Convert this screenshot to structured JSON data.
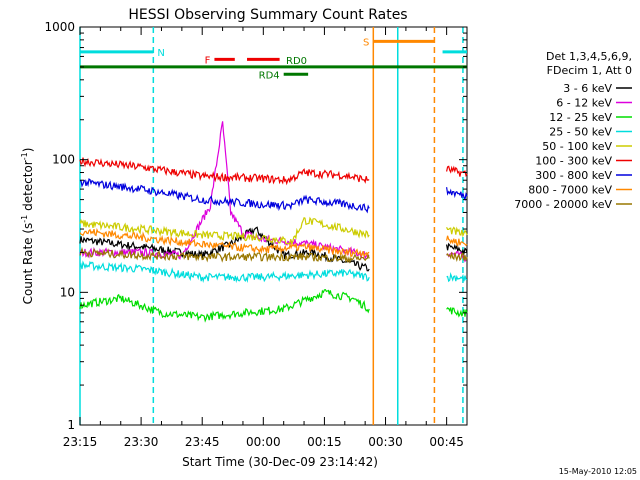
{
  "chart_data": {
    "type": "line",
    "title": "HESSI Observing Summary Count Rates",
    "xlabel": "Start Time (30-Dec-09 23:14:42)",
    "ylabel": "Count Rate (s^-1 detector^-1)",
    "ylabel_main": "Count Rate (s",
    "ylabel_sup1": "-1",
    "ylabel_mid": " detector",
    "ylabel_sup2": "-1",
    "ylabel_end": ")",
    "y_scale": "log",
    "ylim": [
      1,
      1000
    ],
    "xlim": [
      "23:15",
      "00:50"
    ],
    "x_ticks": [
      "23:15",
      "23:30",
      "23:45",
      "00:00",
      "00:15",
      "00:30",
      "00:45"
    ],
    "y_ticks": [
      "1",
      "10",
      "100",
      "1000"
    ],
    "grid": false,
    "legend_position": "right",
    "legend_header": [
      "Det 1,3,4,5,6,9,",
      "FDecim 1, Att 0"
    ],
    "footer_date": "15-May-2010 12:05",
    "series": [
      {
        "name": "3 - 6 keV",
        "color": "#000000",
        "segments": [
          {
            "x": [
              "23:15",
              "23:30",
              "23:45",
              "23:52",
              "23:58",
              "00:05",
              "00:12",
              "00:20",
              "00:26"
            ],
            "y": [
              25,
              22,
              19,
              23,
              30,
              19,
              20,
              17,
              15
            ]
          },
          {
            "x": [
              "00:45",
              "00:48",
              "00:50"
            ],
            "y": [
              22,
              21,
              20
            ]
          }
        ]
      },
      {
        "name": "6 - 12 keV",
        "color": "#dd00dd",
        "segments": [
          {
            "x": [
              "23:15",
              "23:30",
              "23:40",
              "23:47",
              "23:50",
              "23:52",
              "23:55",
              "24:00",
              "00:08",
              "00:15",
              "00:22",
              "00:26"
            ],
            "y": [
              20,
              20,
              19,
              45,
              190,
              40,
              28,
              25,
              24,
              22,
              20,
              19
            ]
          },
          {
            "x": [
              "00:45",
              "00:48",
              "00:50"
            ],
            "y": [
              20,
              19,
              18
            ]
          }
        ]
      },
      {
        "name": "12 - 25 keV",
        "color": "#00dd00",
        "segments": [
          {
            "x": [
              "23:15",
              "23:25",
              "23:35",
              "23:45",
              "23:55",
              "00:05",
              "00:15",
              "00:22",
              "00:26"
            ],
            "y": [
              8,
              9,
              7,
              6.5,
              7,
              7.5,
              10,
              9,
              7.5
            ]
          },
          {
            "x": [
              "00:45",
              "00:48",
              "00:50"
            ],
            "y": [
              7.5,
              7,
              7
            ]
          }
        ]
      },
      {
        "name": "25 - 50 keV",
        "color": "#00dddd",
        "segments": [
          {
            "x": [
              "23:15",
              "23:30",
              "23:45",
              "24:00",
              "00:10",
              "00:20",
              "00:26"
            ],
            "y": [
              16,
              15,
              13,
              13,
              13.5,
              14,
              13
            ]
          },
          {
            "x": [
              "00:45",
              "00:48",
              "00:50"
            ],
            "y": [
              13,
              13,
              12.5
            ]
          }
        ]
      },
      {
        "name": "50 - 100 keV",
        "color": "#cccc00",
        "segments": [
          {
            "x": [
              "23:15",
              "23:30",
              "23:45",
              "24:00",
              "00:07",
              "00:10",
              "00:20",
              "00:26"
            ],
            "y": [
              33,
              30,
              27,
              26,
              24,
              35,
              30,
              27
            ]
          },
          {
            "x": [
              "00:45",
              "00:48",
              "00:50"
            ],
            "y": [
              30,
              28,
              27
            ]
          }
        ]
      },
      {
        "name": "100 - 300 keV",
        "color": "#ee0000",
        "segments": [
          {
            "x": [
              "23:15",
              "23:30",
              "23:45",
              "24:00",
              "00:06",
              "00:10",
              "00:20",
              "00:26"
            ],
            "y": [
              98,
              88,
              75,
              72,
              70,
              80,
              76,
              70
            ]
          },
          {
            "x": [
              "00:45",
              "00:48",
              "00:50"
            ],
            "y": [
              85,
              80,
              78
            ]
          }
        ]
      },
      {
        "name": "300 - 800 keV",
        "color": "#0000dd",
        "segments": [
          {
            "x": [
              "23:15",
              "23:30",
              "23:45",
              "24:00",
              "00:07",
              "00:10",
              "00:20",
              "00:26"
            ],
            "y": [
              68,
              60,
              50,
              46,
              45,
              50,
              46,
              43
            ]
          },
          {
            "x": [
              "00:45",
              "00:48",
              "00:50"
            ],
            "y": [
              58,
              55,
              53
            ]
          }
        ]
      },
      {
        "name": "800 - 7000 keV",
        "color": "#ff8800",
        "segments": [
          {
            "x": [
              "23:15",
              "23:30",
              "23:45",
              "24:00",
              "00:10",
              "00:20",
              "00:26"
            ],
            "y": [
              29,
              26,
              23,
              21,
              22,
              20,
              20
            ]
          },
          {
            "x": [
              "00:45",
              "00:48",
              "00:50"
            ],
            "y": [
              25,
              24,
              23
            ]
          }
        ]
      },
      {
        "name": "7000 - 20000 keV",
        "color": "#997700",
        "segments": [
          {
            "x": [
              "23:15",
              "23:30",
              "23:45",
              "24:00",
              "00:10",
              "00:20",
              "00:26"
            ],
            "y": [
              20,
              19,
              18.5,
              18.5,
              18.5,
              18,
              18
            ]
          },
          {
            "x": [
              "00:45",
              "00:48",
              "00:50"
            ],
            "y": [
              19,
              18.5,
              18.5
            ]
          }
        ]
      }
    ],
    "flags": [
      {
        "label": "N",
        "color": "#00dddd",
        "y": 650,
        "x_start": "23:15",
        "x_end": "23:33"
      },
      {
        "label": "F",
        "color": "#ee0000",
        "y": 570,
        "x_start": "23:48",
        "x_end": "23:53"
      },
      {
        "label": "",
        "color": "#ee0000",
        "y": 570,
        "x_start": "23:56",
        "x_end": "24:04"
      },
      {
        "label": "RD0",
        "color": "#007700",
        "y": 500,
        "x_start": "23:15",
        "x_end": "00:50"
      },
      {
        "label": "RD4",
        "color": "#007700",
        "y": 440,
        "x_start": "00:05",
        "x_end": "00:11"
      },
      {
        "label": "S",
        "color": "#ff8800",
        "y": 780,
        "x_start": "00:27",
        "x_end": "00:42"
      },
      {
        "label": "",
        "color": "#00dddd",
        "y": 650,
        "x_start": "00:44",
        "x_end": "00:50"
      }
    ],
    "vlines": [
      {
        "x": "23:15",
        "color": "#00dddd",
        "style": "solid"
      },
      {
        "x": "23:33",
        "color": "#00dddd",
        "style": "dashed"
      },
      {
        "x": "00:27",
        "color": "#ff8800",
        "style": "solid"
      },
      {
        "x": "00:33",
        "color": "#00dddd",
        "style": "solid"
      },
      {
        "x": "00:42",
        "color": "#ff8800",
        "style": "dashed"
      },
      {
        "x": "00:49",
        "color": "#00dddd",
        "style": "dashed"
      }
    ]
  }
}
